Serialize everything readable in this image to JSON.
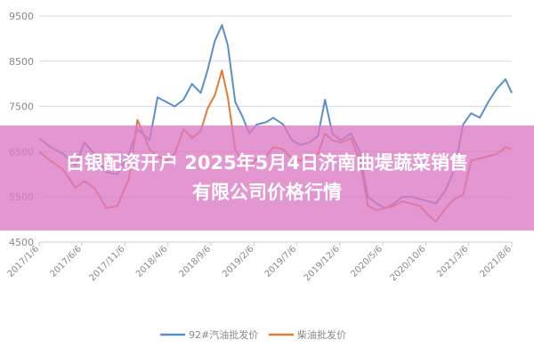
{
  "overlay": {
    "line1": "白银配资开户 2025年5月4日济南曲堤蔬菜销售",
    "line2": "有限公司价格行情"
  },
  "chart_data": {
    "type": "line",
    "title": "",
    "xlabel": "",
    "ylabel": "",
    "ylim": [
      4500,
      9500
    ],
    "yticks": [
      4500,
      5500,
      6500,
      7500,
      8500,
      9500
    ],
    "xlim": [
      "2017-01-06",
      "2021-08-06"
    ],
    "xtick_labels": [
      "2017/1/6",
      "2017/6/6",
      "2017/11/6",
      "2018/4/6",
      "2018/9/6",
      "2019/2/6",
      "2019/7/6",
      "2019/12/6",
      "2020/5/6",
      "2020/10/6",
      "2021/3/6",
      "2021/8/6"
    ],
    "grid": "horizontal",
    "legend": "bottom",
    "colors": {
      "gasoline": "#5b8fcc",
      "diesel": "#e07b39",
      "axis": "#cccccc",
      "grid": "#d9d9d9",
      "text": "#888888"
    },
    "series": [
      {
        "name": "92#汽油批发价",
        "key": "gasoline",
        "points": [
          [
            "2017-01-06",
            6800
          ],
          [
            "2017-02-15",
            6600
          ],
          [
            "2017-04-01",
            6450
          ],
          [
            "2017-05-15",
            6200
          ],
          [
            "2017-06-15",
            6700
          ],
          [
            "2017-07-20",
            6450
          ],
          [
            "2017-09-01",
            6050
          ],
          [
            "2017-10-10",
            6000
          ],
          [
            "2017-11-20",
            6450
          ],
          [
            "2017-12-20",
            7000
          ],
          [
            "2018-02-01",
            6750
          ],
          [
            "2018-03-01",
            7700
          ],
          [
            "2018-04-01",
            7600
          ],
          [
            "2018-05-01",
            7500
          ],
          [
            "2018-06-01",
            7650
          ],
          [
            "2018-07-01",
            8000
          ],
          [
            "2018-08-01",
            7800
          ],
          [
            "2018-08-25",
            8300
          ],
          [
            "2018-09-20",
            8950
          ],
          [
            "2018-10-15",
            9300
          ],
          [
            "2018-11-05",
            8850
          ],
          [
            "2018-12-01",
            7600
          ],
          [
            "2018-12-25",
            7300
          ],
          [
            "2019-01-20",
            6900
          ],
          [
            "2019-02-15",
            7100
          ],
          [
            "2019-03-20",
            7150
          ],
          [
            "2019-04-15",
            7250
          ],
          [
            "2019-05-20",
            7100
          ],
          [
            "2019-06-20",
            6750
          ],
          [
            "2019-07-20",
            6650
          ],
          [
            "2019-08-20",
            6700
          ],
          [
            "2019-09-20",
            6850
          ],
          [
            "2019-10-15",
            7650
          ],
          [
            "2019-11-10",
            6900
          ],
          [
            "2019-12-10",
            6750
          ],
          [
            "2020-01-15",
            6900
          ],
          [
            "2020-02-15",
            6500
          ],
          [
            "2020-03-15",
            5500
          ],
          [
            "2020-04-15",
            5350
          ],
          [
            "2020-05-15",
            5250
          ],
          [
            "2020-06-15",
            5350
          ],
          [
            "2020-07-15",
            5500
          ],
          [
            "2020-08-15",
            5500
          ],
          [
            "2020-09-15",
            5450
          ],
          [
            "2020-10-15",
            5400
          ],
          [
            "2020-11-10",
            5350
          ],
          [
            "2020-12-15",
            5650
          ],
          [
            "2021-01-15",
            6100
          ],
          [
            "2021-02-15",
            7100
          ],
          [
            "2021-03-15",
            7350
          ],
          [
            "2021-04-15",
            7250
          ],
          [
            "2021-05-15",
            7600
          ],
          [
            "2021-06-15",
            7900
          ],
          [
            "2021-07-15",
            8100
          ],
          [
            "2021-08-06",
            7800
          ]
        ]
      },
      {
        "name": "柴油批发价",
        "key": "diesel",
        "points": [
          [
            "2017-01-06",
            6500
          ],
          [
            "2017-02-15",
            6300
          ],
          [
            "2017-04-01",
            6100
          ],
          [
            "2017-05-15",
            5700
          ],
          [
            "2017-06-15",
            5850
          ],
          [
            "2017-07-20",
            5700
          ],
          [
            "2017-09-01",
            5250
          ],
          [
            "2017-10-10",
            5300
          ],
          [
            "2017-11-20",
            5900
          ],
          [
            "2017-12-20",
            7200
          ],
          [
            "2018-02-01",
            6550
          ],
          [
            "2018-03-01",
            6400
          ],
          [
            "2018-04-01",
            6300
          ],
          [
            "2018-05-01",
            6450
          ],
          [
            "2018-06-01",
            7000
          ],
          [
            "2018-07-01",
            6800
          ],
          [
            "2018-08-01",
            6950
          ],
          [
            "2018-08-25",
            7450
          ],
          [
            "2018-09-20",
            7750
          ],
          [
            "2018-10-15",
            8300
          ],
          [
            "2018-11-05",
            7700
          ],
          [
            "2018-12-01",
            6550
          ],
          [
            "2018-12-25",
            6300
          ],
          [
            "2019-01-20",
            6150
          ],
          [
            "2019-02-15",
            6350
          ],
          [
            "2019-03-20",
            6400
          ],
          [
            "2019-04-15",
            6600
          ],
          [
            "2019-05-20",
            6550
          ],
          [
            "2019-06-20",
            6350
          ],
          [
            "2019-07-20",
            6300
          ],
          [
            "2019-08-20",
            6400
          ],
          [
            "2019-09-20",
            6450
          ],
          [
            "2019-10-15",
            6900
          ],
          [
            "2019-11-10",
            6750
          ],
          [
            "2019-12-10",
            6700
          ],
          [
            "2020-01-15",
            6800
          ],
          [
            "2020-02-15",
            6300
          ],
          [
            "2020-03-15",
            5300
          ],
          [
            "2020-04-15",
            5200
          ],
          [
            "2020-05-15",
            5250
          ],
          [
            "2020-06-15",
            5300
          ],
          [
            "2020-07-15",
            5400
          ],
          [
            "2020-08-15",
            5350
          ],
          [
            "2020-09-15",
            5300
          ],
          [
            "2020-10-15",
            5100
          ],
          [
            "2020-11-10",
            4950
          ],
          [
            "2020-12-15",
            5250
          ],
          [
            "2021-01-15",
            5450
          ],
          [
            "2021-02-15",
            5550
          ],
          [
            "2021-03-15",
            6300
          ],
          [
            "2021-04-15",
            6350
          ],
          [
            "2021-05-15",
            6400
          ],
          [
            "2021-06-15",
            6450
          ],
          [
            "2021-07-15",
            6600
          ],
          [
            "2021-08-06",
            6550
          ]
        ]
      }
    ]
  }
}
